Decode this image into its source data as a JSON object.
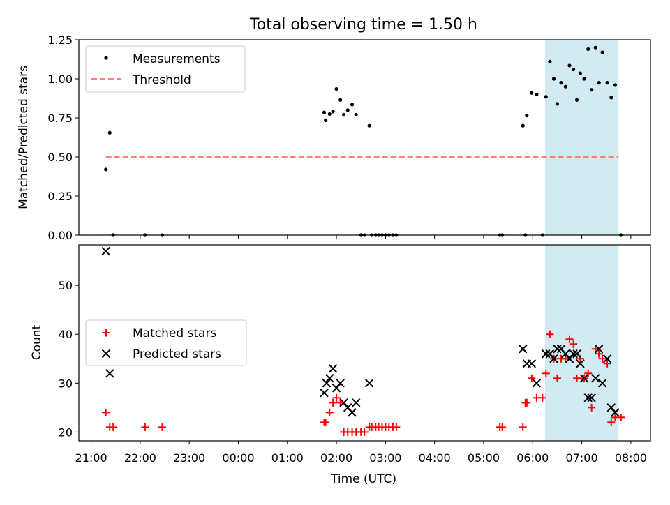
{
  "title": "Total observing time = 1.50 h",
  "colors": {
    "measurement": "#000000",
    "threshold": "#ff7f7f",
    "matched": "#ff0000",
    "predicted": "#000000",
    "window": "#add8e6"
  },
  "chart_data": [
    {
      "type": "scatter",
      "title": "Total observing time = 1.50 h",
      "ylabel": "Matched/Predicted stars",
      "xlabel": "",
      "x_unit": "hours since 21:00 UTC (evening start)",
      "xlim": [
        -0.25,
        11.4
      ],
      "ylim": [
        0,
        1.25
      ],
      "yticks": [
        "0.00",
        "0.25",
        "0.50",
        "0.75",
        "1.00",
        "1.25"
      ],
      "shaded_window": [
        9.25,
        10.75
      ],
      "legend": {
        "placement": "upper-left",
        "entries": [
          "Measurements",
          "Threshold"
        ]
      },
      "threshold": {
        "name": "Threshold",
        "value": 0.5,
        "x_range": [
          0.3,
          10.75
        ]
      },
      "series": [
        {
          "name": "Measurements",
          "points": [
            [
              0.3,
              0.42
            ],
            [
              0.38,
              0.655
            ],
            [
              0.45,
              0.0
            ],
            [
              1.1,
              0.0
            ],
            [
              1.45,
              0.0
            ],
            [
              4.75,
              0.785
            ],
            [
              4.78,
              0.735
            ],
            [
              4.86,
              0.775
            ],
            [
              4.93,
              0.79
            ],
            [
              5.0,
              0.935
            ],
            [
              5.08,
              0.865
            ],
            [
              5.15,
              0.77
            ],
            [
              5.23,
              0.8
            ],
            [
              5.32,
              0.835
            ],
            [
              5.4,
              0.77
            ],
            [
              5.5,
              0.0
            ],
            [
              5.57,
              0.0
            ],
            [
              5.67,
              0.7
            ],
            [
              5.72,
              0.0
            ],
            [
              5.8,
              0.0
            ],
            [
              5.86,
              0.0
            ],
            [
              5.93,
              0.0
            ],
            [
              6.0,
              0.0
            ],
            [
              6.07,
              0.0
            ],
            [
              6.15,
              0.0
            ],
            [
              6.22,
              0.0
            ],
            [
              8.33,
              0.0
            ],
            [
              8.38,
              0.0
            ],
            [
              8.8,
              0.7
            ],
            [
              8.85,
              0.0
            ],
            [
              8.88,
              0.765
            ],
            [
              8.98,
              0.91
            ],
            [
              9.08,
              0.9
            ],
            [
              9.2,
              0.0
            ],
            [
              9.27,
              0.885
            ],
            [
              9.35,
              1.11
            ],
            [
              9.43,
              1.0
            ],
            [
              9.5,
              0.84
            ],
            [
              9.58,
              0.975
            ],
            [
              9.67,
              0.95
            ],
            [
              9.75,
              1.085
            ],
            [
              9.83,
              1.06
            ],
            [
              9.9,
              0.865
            ],
            [
              9.97,
              1.035
            ],
            [
              10.05,
              1.0
            ],
            [
              10.13,
              1.19
            ],
            [
              10.2,
              0.93
            ],
            [
              10.28,
              1.2
            ],
            [
              10.35,
              0.975
            ],
            [
              10.42,
              1.17
            ],
            [
              10.52,
              0.975
            ],
            [
              10.6,
              0.88
            ],
            [
              10.68,
              0.96
            ],
            [
              10.8,
              0.0
            ]
          ]
        }
      ]
    },
    {
      "type": "scatter",
      "xlabel": "Time (UTC)",
      "ylabel": "Count",
      "x_unit": "hours since 21:00 UTC (evening start)",
      "xlim": [
        -0.25,
        11.4
      ],
      "ylim": [
        18.2,
        58.3
      ],
      "yticks": [
        "20",
        "30",
        "40",
        "50"
      ],
      "xticks": [
        "21:00",
        "22:00",
        "23:00",
        "00:00",
        "01:00",
        "02:00",
        "03:00",
        "04:00",
        "05:00",
        "06:00",
        "07:00",
        "08:00"
      ],
      "shaded_window": [
        9.25,
        10.75
      ],
      "legend": {
        "placement": "center-left",
        "entries": [
          "Matched stars",
          "Predicted stars"
        ]
      },
      "series": [
        {
          "name": "Matched stars",
          "marker": "+",
          "points": [
            [
              0.3,
              24
            ],
            [
              0.38,
              21
            ],
            [
              0.45,
              21
            ],
            [
              1.1,
              21
            ],
            [
              1.45,
              21
            ],
            [
              4.75,
              22
            ],
            [
              4.78,
              22
            ],
            [
              4.86,
              24
            ],
            [
              4.93,
              26
            ],
            [
              5.0,
              27
            ],
            [
              5.08,
              26
            ],
            [
              5.15,
              20
            ],
            [
              5.23,
              20
            ],
            [
              5.32,
              20
            ],
            [
              5.4,
              20
            ],
            [
              5.5,
              20
            ],
            [
              5.57,
              20
            ],
            [
              5.67,
              21
            ],
            [
              5.72,
              21
            ],
            [
              5.8,
              21
            ],
            [
              5.86,
              21
            ],
            [
              5.93,
              21
            ],
            [
              6.0,
              21
            ],
            [
              6.07,
              21
            ],
            [
              6.15,
              21
            ],
            [
              6.22,
              21
            ],
            [
              8.33,
              21
            ],
            [
              8.38,
              21
            ],
            [
              8.8,
              21
            ],
            [
              8.85,
              26
            ],
            [
              8.88,
              26
            ],
            [
              8.98,
              31
            ],
            [
              9.08,
              27
            ],
            [
              9.2,
              27
            ],
            [
              9.27,
              32
            ],
            [
              9.35,
              40
            ],
            [
              9.43,
              35
            ],
            [
              9.5,
              31
            ],
            [
              9.58,
              35
            ],
            [
              9.67,
              35
            ],
            [
              9.75,
              39
            ],
            [
              9.83,
              38
            ],
            [
              9.9,
              31
            ],
            [
              9.97,
              35
            ],
            [
              10.05,
              31
            ],
            [
              10.13,
              32
            ],
            [
              10.2,
              25
            ],
            [
              10.28,
              37
            ],
            [
              10.35,
              36
            ],
            [
              10.42,
              35
            ],
            [
              10.52,
              34
            ],
            [
              10.6,
              22
            ],
            [
              10.68,
              23
            ],
            [
              10.8,
              23
            ]
          ]
        },
        {
          "name": "Predicted stars",
          "marker": "x",
          "points": [
            [
              0.3,
              57
            ],
            [
              0.38,
              32
            ],
            [
              4.75,
              28
            ],
            [
              4.8,
              30
            ],
            [
              4.86,
              31
            ],
            [
              4.93,
              33
            ],
            [
              5.0,
              29
            ],
            [
              5.08,
              30
            ],
            [
              5.15,
              26
            ],
            [
              5.23,
              25
            ],
            [
              5.32,
              24
            ],
            [
              5.4,
              26
            ],
            [
              5.67,
              30
            ],
            [
              8.8,
              37
            ],
            [
              8.88,
              34
            ],
            [
              8.98,
              34
            ],
            [
              9.08,
              30
            ],
            [
              9.27,
              36
            ],
            [
              9.35,
              36
            ],
            [
              9.43,
              35
            ],
            [
              9.5,
              37
            ],
            [
              9.58,
              37
            ],
            [
              9.67,
              36
            ],
            [
              9.75,
              35
            ],
            [
              9.83,
              36
            ],
            [
              9.9,
              36
            ],
            [
              9.97,
              34
            ],
            [
              10.05,
              31
            ],
            [
              10.13,
              27
            ],
            [
              10.2,
              27
            ],
            [
              10.28,
              31
            ],
            [
              10.35,
              37
            ],
            [
              10.42,
              30
            ],
            [
              10.52,
              35
            ],
            [
              10.6,
              25
            ],
            [
              10.68,
              24
            ]
          ]
        }
      ]
    }
  ]
}
